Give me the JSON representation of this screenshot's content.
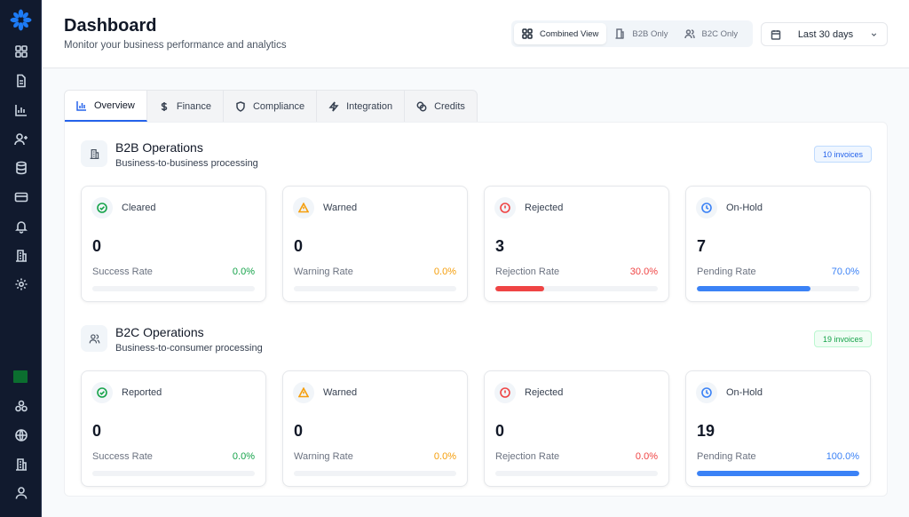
{
  "sidebar": {
    "icons": [
      "dashboard-icon",
      "document-icon",
      "chart-icon",
      "user-plus-icon",
      "database-icon",
      "credit-card-icon",
      "bell-icon",
      "building-icon",
      "settings-icon"
    ],
    "bottom_icons": [
      "saudi-flag-icon",
      "network-icon",
      "globe-icon",
      "building-icon",
      "user-icon"
    ]
  },
  "header": {
    "title": "Dashboard",
    "subtitle": "Monitor your business performance and analytics",
    "view_options": [
      {
        "label": "Combined View",
        "active": true
      },
      {
        "label": "B2B Only"
      },
      {
        "label": "B2C Only"
      }
    ],
    "date_range": "Last 30 days"
  },
  "tabs": [
    {
      "label": "Overview",
      "active": true
    },
    {
      "label": "Finance"
    },
    {
      "label": "Compliance"
    },
    {
      "label": "Integration"
    },
    {
      "label": "Credits"
    }
  ],
  "sections": [
    {
      "title": "B2B Operations",
      "subtitle": "Business-to-business processing",
      "badge": "10 invoices",
      "badge_color": "#2563eb",
      "cards": [
        {
          "label": "Cleared",
          "value": "0",
          "rate_label": "Success Rate",
          "rate": "0.0%",
          "percent": 0,
          "color": "#16a34a",
          "icon": "check-circle-icon"
        },
        {
          "label": "Warned",
          "value": "0",
          "rate_label": "Warning Rate",
          "rate": "0.0%",
          "percent": 0,
          "color": "#f59e0b",
          "icon": "warning-triangle-icon"
        },
        {
          "label": "Rejected",
          "value": "3",
          "rate_label": "Rejection Rate",
          "rate": "30.0%",
          "percent": 30,
          "color": "#ef4444",
          "icon": "alert-circle-icon"
        },
        {
          "label": "On-Hold",
          "value": "7",
          "rate_label": "Pending Rate",
          "rate": "70.0%",
          "percent": 70,
          "color": "#3b82f6",
          "icon": "clock-icon"
        }
      ]
    },
    {
      "title": "B2C Operations",
      "subtitle": "Business-to-consumer processing",
      "badge": "19 invoices",
      "badge_color": "#16a34a",
      "cards": [
        {
          "label": "Reported",
          "value": "0",
          "rate_label": "Success Rate",
          "rate": "0.0%",
          "percent": 0,
          "color": "#16a34a",
          "icon": "check-circle-icon"
        },
        {
          "label": "Warned",
          "value": "0",
          "rate_label": "Warning Rate",
          "rate": "0.0%",
          "percent": 0,
          "color": "#f59e0b",
          "icon": "warning-triangle-icon"
        },
        {
          "label": "Rejected",
          "value": "0",
          "rate_label": "Rejection Rate",
          "rate": "0.0%",
          "percent": 0,
          "color": "#ef4444",
          "icon": "alert-circle-icon"
        },
        {
          "label": "On-Hold",
          "value": "19",
          "rate_label": "Pending Rate",
          "rate": "100.0%",
          "percent": 100,
          "color": "#3b82f6",
          "icon": "clock-icon"
        }
      ]
    }
  ]
}
